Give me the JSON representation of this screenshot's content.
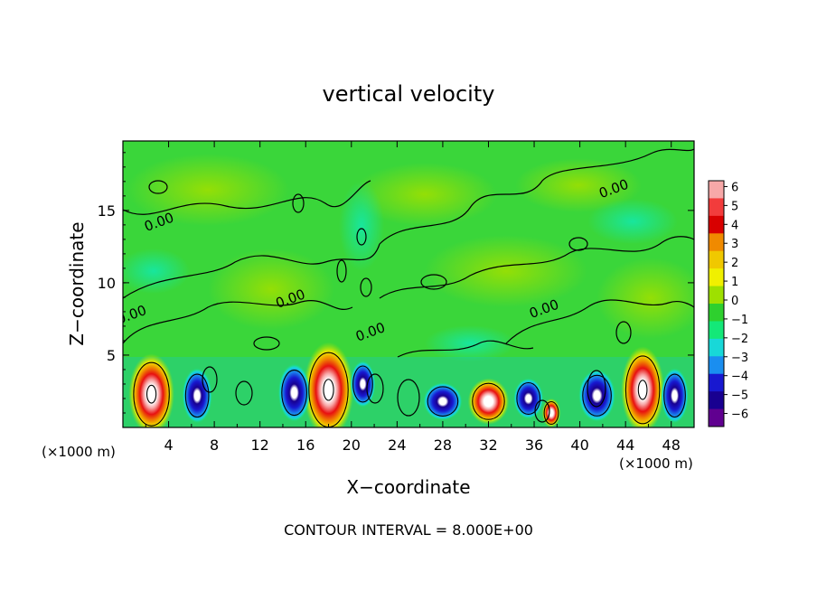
{
  "chart_data": {
    "type": "heatmap",
    "title": "vertical velocity",
    "xlabel": "X−coordinate",
    "ylabel": "Z−coordinate",
    "x_unit_label": "(×1000 m)",
    "y_unit_label": "(×1000 m)",
    "footer": "CONTOUR INTERVAL = 8.000E+00",
    "xlim": [
      0,
      50
    ],
    "ylim": [
      0,
      19.8
    ],
    "x_ticks": [
      4,
      8,
      12,
      16,
      20,
      24,
      28,
      32,
      36,
      40,
      44,
      48
    ],
    "x_tick_labels": [
      "4",
      "8",
      "12",
      "16",
      "20",
      "24",
      "28",
      "32",
      "36",
      "40",
      "44",
      "48"
    ],
    "y_ticks": [
      5,
      10,
      15
    ],
    "y_tick_labels": [
      "5",
      "10",
      "15"
    ],
    "contour_labels": [
      {
        "text": "0.00",
        "x": 3.3,
        "y": 13.9
      },
      {
        "text": "0.00",
        "x": 14.8,
        "y": 8.6
      },
      {
        "text": "0.00",
        "x": 0.9,
        "y": 7.5
      },
      {
        "text": "0.00",
        "x": 21.8,
        "y": 6.3
      },
      {
        "text": "0.00",
        "x": 37.0,
        "y": 7.9
      },
      {
        "text": "0.00",
        "x": 43.1,
        "y": 16.2
      }
    ],
    "colorbar": {
      "labels": [
        "6",
        "5",
        "4",
        "3",
        "2",
        "1",
        "0",
        "−1",
        "−2",
        "−3",
        "−4",
        "−5",
        "−6"
      ],
      "colors": [
        "#f7a8a8",
        "#f23c3c",
        "#d80000",
        "#f08a00",
        "#f0c800",
        "#f0f000",
        "#9ee000",
        "#2ed02e",
        "#14e878",
        "#18d8d8",
        "#1a8ef0",
        "#1818d0",
        "#180090",
        "#600090"
      ],
      "min": -6,
      "max": 6
    },
    "features": [
      {
        "kind": "updraft",
        "x": 2.5,
        "z": 2.3,
        "rx": 2.0,
        "rz": 2.8
      },
      {
        "kind": "downdraft",
        "x": 6.5,
        "z": 2.2,
        "rx": 1.3,
        "rz": 1.9
      },
      {
        "kind": "updraft",
        "x": 18.0,
        "z": 2.6,
        "rx": 2.2,
        "rz": 3.3
      },
      {
        "kind": "downdraft",
        "x": 15.0,
        "z": 2.4,
        "rx": 1.4,
        "rz": 2.0
      },
      {
        "kind": "downdraft",
        "x": 21.0,
        "z": 3.0,
        "rx": 1.1,
        "rz": 1.6
      },
      {
        "kind": "downdraft",
        "x": 28.0,
        "z": 1.8,
        "rx": 1.7,
        "rz": 1.3
      },
      {
        "kind": "updraft",
        "x": 32.0,
        "z": 1.8,
        "rx": 1.8,
        "rz": 1.6
      },
      {
        "kind": "downdraft",
        "x": 35.5,
        "z": 2.0,
        "rx": 1.3,
        "rz": 1.4
      },
      {
        "kind": "updraft",
        "x": 37.5,
        "z": 1.0,
        "rx": 0.8,
        "rz": 1.0
      },
      {
        "kind": "downdraft",
        "x": 41.5,
        "z": 2.2,
        "rx": 1.6,
        "rz": 1.8
      },
      {
        "kind": "updraft",
        "x": 45.5,
        "z": 2.6,
        "rx": 1.9,
        "rz": 3.0
      },
      {
        "kind": "downdraft",
        "x": 48.3,
        "z": 2.2,
        "rx": 1.2,
        "rz": 1.9
      }
    ]
  }
}
